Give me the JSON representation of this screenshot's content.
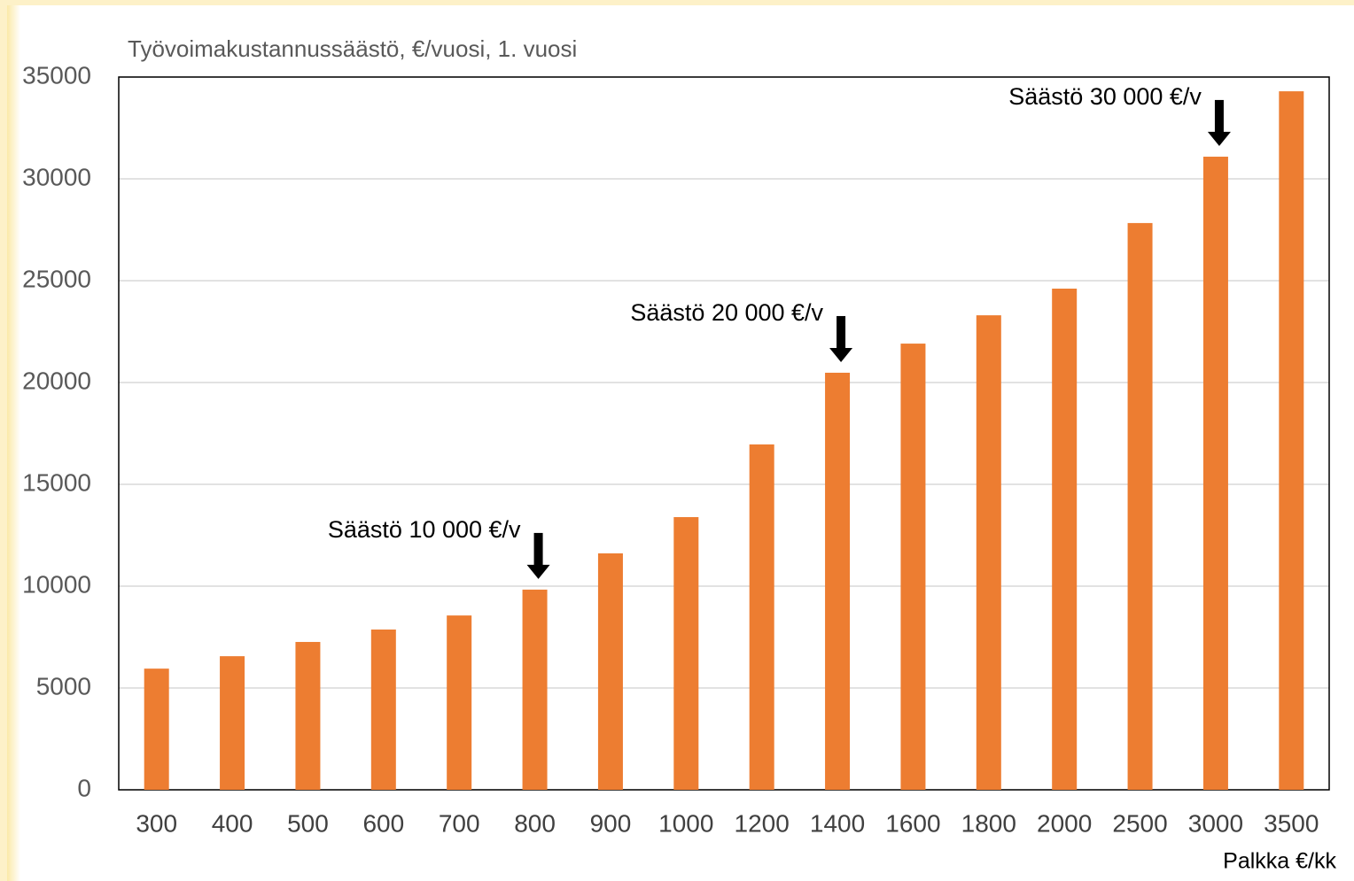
{
  "chart_data": {
    "type": "bar",
    "y_axis_label": "Työvoimakustannussäästö, €/vuosi, 1. vuosi",
    "x_axis_label": "Palkka €/kk",
    "categories": [
      "300",
      "400",
      "500",
      "600",
      "700",
      "800",
      "900",
      "1000",
      "1200",
      "1400",
      "1600",
      "1800",
      "2000",
      "2500",
      "3000",
      "3500"
    ],
    "values": [
      5950,
      6560,
      7260,
      7870,
      8560,
      9830,
      11610,
      13390,
      16960,
      20480,
      21910,
      23300,
      24610,
      27830,
      31090,
      34300
    ],
    "color": "#ed7d31",
    "ylim": [
      0,
      35000
    ],
    "yticks": [
      0,
      5000,
      10000,
      15000,
      20000,
      25000,
      30000,
      35000
    ],
    "grid": true,
    "annotations": [
      "Säästö 10 000 €/v",
      "Säästö 20 000 €/v",
      "Säästö 30 000 €/v"
    ]
  }
}
